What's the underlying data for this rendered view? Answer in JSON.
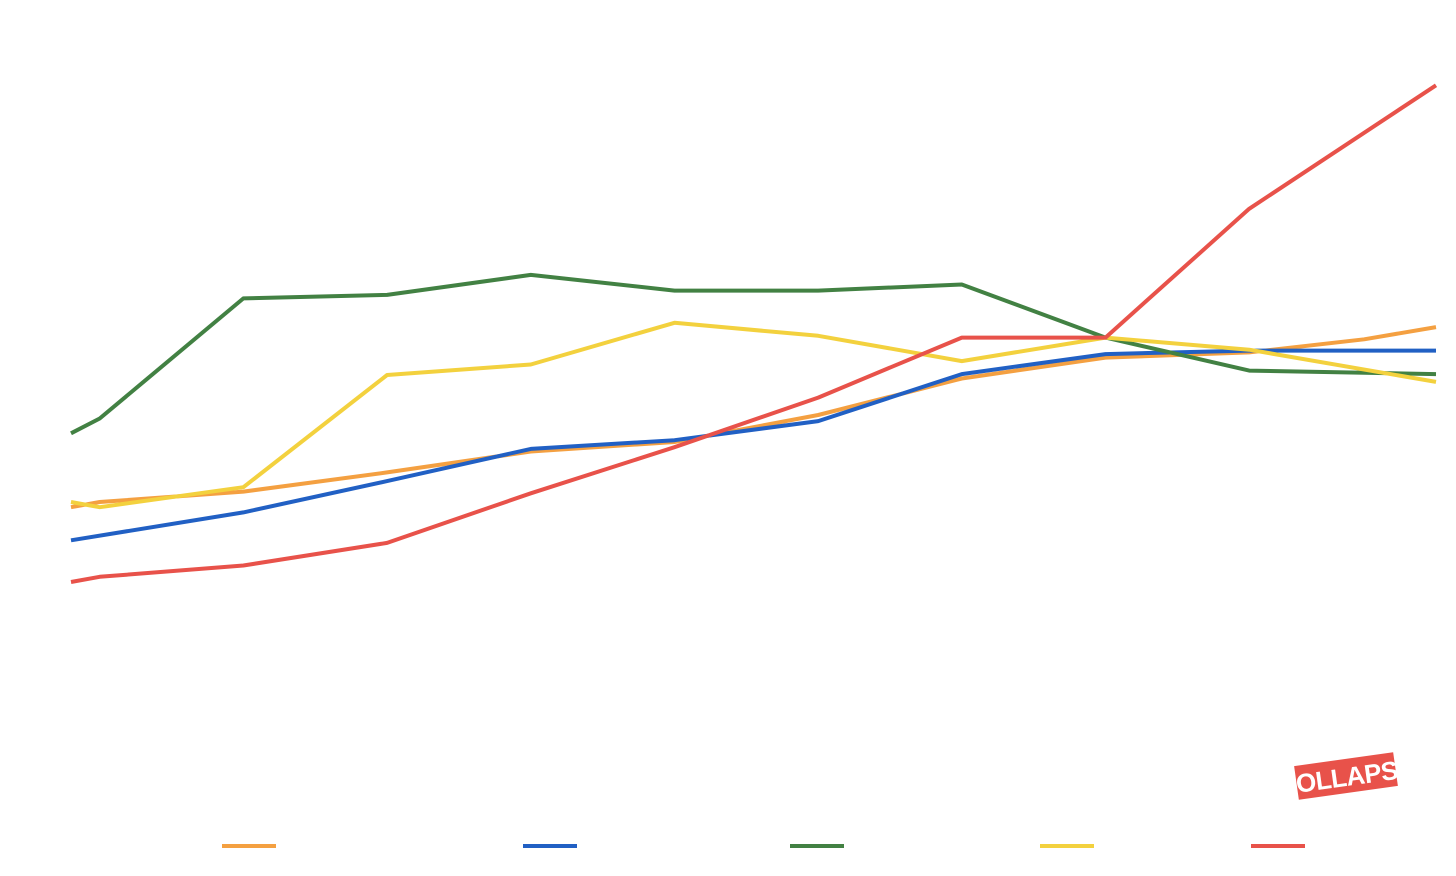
{
  "logo": {
    "text": "COLLAPSE",
    "color": "#e8524a"
  },
  "chart_data": {
    "type": "line",
    "title": "",
    "xlabel": "",
    "ylabel": "",
    "x": [
      0,
      1,
      2,
      3,
      4,
      5,
      6,
      7,
      8,
      9,
      10
    ],
    "ylim": [
      0,
      100
    ],
    "grid": false,
    "legend": "bottom",
    "series": [
      {
        "color": "#f4a041",
        "x": [
          0,
          0.2,
          1.2,
          2.2,
          3.2,
          4.2,
          5.2,
          6.2,
          7.2,
          8.2,
          9.0,
          9.5
        ],
        "values": [
          41.7,
          42.3,
          43.5,
          45.7,
          48.1,
          49.2,
          52.3,
          56.5,
          58.9,
          59.5,
          61.0,
          62.4
        ]
      },
      {
        "color": "#2160c4",
        "x": [
          0,
          1.2,
          2.2,
          3.2,
          4.2,
          5.2,
          6.2,
          7.2,
          8.2,
          9.5
        ],
        "values": [
          37.9,
          41.1,
          44.7,
          48.4,
          49.4,
          51.6,
          57.0,
          59.3,
          59.7,
          59.7
        ]
      },
      {
        "color": "#428143",
        "x": [
          0,
          0.2,
          1.2,
          2.2,
          3.2,
          4.2,
          5.2,
          6.2,
          7.2,
          8.2,
          9.5
        ],
        "values": [
          50.2,
          51.9,
          65.7,
          66.1,
          68.4,
          66.6,
          66.6,
          67.3,
          61.2,
          57.4,
          57.0
        ]
      },
      {
        "color": "#f3d13e",
        "x": [
          0,
          0.2,
          1.2,
          2.2,
          3.2,
          4.2,
          5.2,
          6.2,
          7.2,
          8.2,
          9.5
        ],
        "values": [
          42.3,
          41.7,
          44.0,
          56.9,
          58.1,
          62.9,
          61.4,
          58.5,
          61.2,
          59.8,
          56.1
        ]
      },
      {
        "color": "#e8524a",
        "x": [
          0,
          0.2,
          1.2,
          2.2,
          3.2,
          4.2,
          5.2,
          6.2,
          7.2,
          8.2,
          9.5
        ],
        "values": [
          33.1,
          33.7,
          35.0,
          37.6,
          43.3,
          48.6,
          54.3,
          61.2,
          61.2,
          76.0,
          90.2
        ]
      }
    ]
  }
}
